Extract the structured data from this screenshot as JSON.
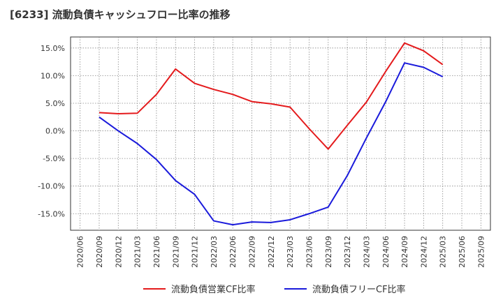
{
  "chart_data": {
    "type": "line",
    "title": "[6233]  流動負債キャッシュフロー比率の推移",
    "xlabel": "",
    "ylabel": "",
    "ylim": [
      -18,
      17
    ],
    "yticks": [
      15,
      10,
      5,
      0,
      -5,
      -10,
      -15
    ],
    "ytick_labels": [
      "15.0%",
      "10.0%",
      "5.0%",
      "0.0%",
      "-5.0%",
      "-10.0%",
      "-15.0%"
    ],
    "categories": [
      "2020/06",
      "2020/09",
      "2020/12",
      "2021/03",
      "2021/06",
      "2021/09",
      "2021/12",
      "2022/03",
      "2022/06",
      "2022/09",
      "2022/12",
      "2023/03",
      "2023/06",
      "2023/09",
      "2023/12",
      "2024/03",
      "2024/06",
      "2024/09",
      "2024/12",
      "2025/03",
      "2025/06",
      "2025/09"
    ],
    "grid": true,
    "legend_position": "bottom-center",
    "series": [
      {
        "name": "流動負債営業CF比率",
        "color": "#e41a1c",
        "values": [
          null,
          3.3,
          3.1,
          3.2,
          6.6,
          11.2,
          8.6,
          7.5,
          6.6,
          5.3,
          4.9,
          4.3,
          0.4,
          -3.3,
          1.0,
          5.2,
          10.7,
          15.9,
          14.5,
          12.0,
          null,
          null
        ]
      },
      {
        "name": "流動負債フリーCF比率",
        "color": "#1a1adb",
        "values": [
          null,
          2.5,
          0.0,
          -2.3,
          -5.2,
          -9.0,
          -11.5,
          -16.3,
          -17.0,
          -16.5,
          -16.6,
          -16.1,
          -15.0,
          -13.8,
          -8.1,
          -1.3,
          5.2,
          12.3,
          11.5,
          9.8,
          null,
          null
        ]
      }
    ]
  }
}
